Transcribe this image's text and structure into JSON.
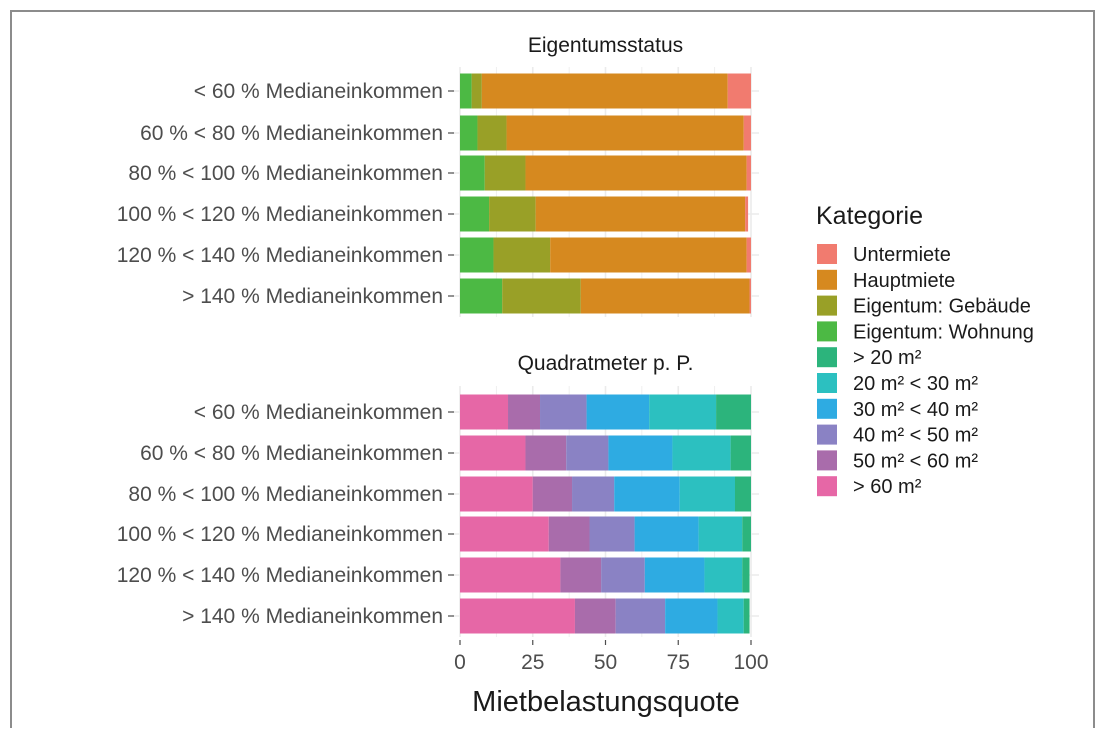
{
  "chart_data": {
    "type": "bar",
    "orientation": "horizontal",
    "stacked": true,
    "xlabel": "Mietbelastungsquote",
    "xlim": [
      0,
      100
    ],
    "xticks": [
      "0",
      "25",
      "50",
      "75",
      "100"
    ],
    "grid": true,
    "categories": [
      "< 60 % Medianeinkommen",
      "60 % < 80 % Medianeinkommen",
      "80 % < 100 % Medianeinkommen",
      "100 % < 120 % Medianeinkommen",
      "120 % < 140 % Medianeinkommen",
      "> 140 % Medianeinkommen"
    ],
    "legend": {
      "title": "Kategorie",
      "position": "right",
      "entries": [
        {
          "label": "Untermiete",
          "color": "#F8766D"
        },
        {
          "label": "Hauptmiete",
          "color": "#D89000"
        },
        {
          "label": "Eigentum: Gebäude",
          "color": "#A3A500"
        },
        {
          "label": "Eigentum: Wohnung",
          "color": "#39B600"
        },
        {
          "label": "> 20 m²",
          "color": "#00BF7D"
        },
        {
          "label": "20 m² < 30 m²",
          "color": "#00BFC4"
        },
        {
          "label": "30 m² < 40 m²",
          "color": "#00B0F6"
        },
        {
          "label": "40 m² < 50 m²",
          "color": "#9590FF"
        },
        {
          "label": "50 m² < 60 m²",
          "color": "#E76BF3"
        },
        {
          "label": "> 60 m²",
          "color": "#FF62BC"
        }
      ]
    },
    "panels": [
      {
        "title": "Eigentumsstatus",
        "series_order": [
          "Eigentum: Wohnung",
          "Eigentum: Gebäude",
          "Hauptmiete",
          "Untermiete"
        ],
        "series": [
          {
            "name": "Eigentum: Wohnung",
            "color": "#4cb944",
            "values": [
              4,
              6,
              8.5,
              10,
              11.5,
              14.5
            ]
          },
          {
            "name": "Eigentum: Gebäude",
            "color": "#99a027",
            "values": [
              3.5,
              10,
              14,
              16,
              19.5,
              27
            ]
          },
          {
            "name": "Hauptmiete",
            "color": "#d6891f",
            "values": [
              84.5,
              81.5,
              76,
              72,
              67.5,
              58
            ]
          },
          {
            "name": "Untermiete",
            "color": "#f17b6f",
            "values": [
              8,
              2.5,
              1.5,
              1,
              1.5,
              0.5
            ]
          }
        ]
      },
      {
        "title": "Quadratmeter p. P.",
        "series_order": [
          "> 60 m²",
          "50 m² < 60 m²",
          "40 m² < 50 m²",
          "30 m² < 40 m²",
          "20 m² < 30 m²",
          "> 20 m²"
        ],
        "series": [
          {
            "name": "> 60 m²",
            "color": "#e667a6",
            "values": [
              16.5,
              22.5,
              25,
              30.5,
              34.5,
              39.5
            ]
          },
          {
            "name": "50 m² < 60 m²",
            "color": "#a96cab",
            "values": [
              11,
              14,
              13.5,
              14,
              14,
              14
            ]
          },
          {
            "name": "40 m² < 50 m²",
            "color": "#8a82c4",
            "values": [
              16,
              14.5,
              14.5,
              15.5,
              15,
              17
            ]
          },
          {
            "name": "30 m² < 40 m²",
            "color": "#2eabe2",
            "values": [
              21.5,
              22,
              22.5,
              22,
              20.5,
              18
            ]
          },
          {
            "name": "20 m² < 30 m²",
            "color": "#2cc0c0",
            "values": [
              23,
              20,
              19,
              15,
              13,
              9
            ]
          },
          {
            "name": "> 20 m²",
            "color": "#2cb47c",
            "values": [
              12,
              7,
              5.5,
              3,
              2.5,
              2
            ]
          }
        ]
      }
    ]
  }
}
